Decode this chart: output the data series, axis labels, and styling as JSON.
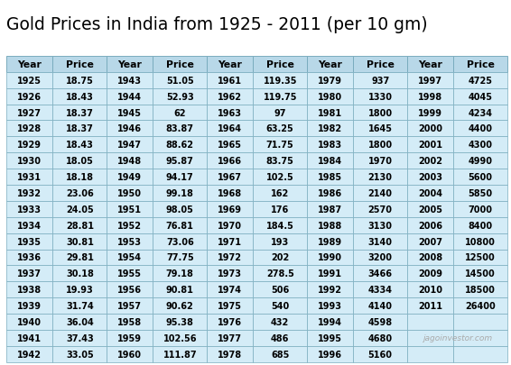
{
  "title": "Gold Prices in India from 1925 - 2011 (per 10 gm)",
  "title_fontsize": 13.5,
  "watermark": "jagoinvestor.com",
  "header_bg": "#b8d8e8",
  "row_bg": "#d4ecf7",
  "header_text_color": "#000000",
  "row_text_color": "#000000",
  "border_color": "#7aacbe",
  "columns": [
    "Year",
    "Price",
    "Year",
    "Price",
    "Year",
    "Price",
    "Year",
    "Price",
    "Year",
    "Price"
  ],
  "data": [
    [
      1925,
      "18.75",
      1943,
      "51.05",
      1961,
      "119.35",
      1979,
      "937",
      1997,
      "4725"
    ],
    [
      1926,
      "18.43",
      1944,
      "52.93",
      1962,
      "119.75",
      1980,
      "1330",
      1998,
      "4045"
    ],
    [
      1927,
      "18.37",
      1945,
      "62",
      1963,
      "97",
      1981,
      "1800",
      1999,
      "4234"
    ],
    [
      1928,
      "18.37",
      1946,
      "83.87",
      1964,
      "63.25",
      1982,
      "1645",
      2000,
      "4400"
    ],
    [
      1929,
      "18.43",
      1947,
      "88.62",
      1965,
      "71.75",
      1983,
      "1800",
      2001,
      "4300"
    ],
    [
      1930,
      "18.05",
      1948,
      "95.87",
      1966,
      "83.75",
      1984,
      "1970",
      2002,
      "4990"
    ],
    [
      1931,
      "18.18",
      1949,
      "94.17",
      1967,
      "102.5",
      1985,
      "2130",
      2003,
      "5600"
    ],
    [
      1932,
      "23.06",
      1950,
      "99.18",
      1968,
      "162",
      1986,
      "2140",
      2004,
      "5850"
    ],
    [
      1933,
      "24.05",
      1951,
      "98.05",
      1969,
      "176",
      1987,
      "2570",
      2005,
      "7000"
    ],
    [
      1934,
      "28.81",
      1952,
      "76.81",
      1970,
      "184.5",
      1988,
      "3130",
      2006,
      "8400"
    ],
    [
      1935,
      "30.81",
      1953,
      "73.06",
      1971,
      "193",
      1989,
      "3140",
      2007,
      "10800"
    ],
    [
      1936,
      "29.81",
      1954,
      "77.75",
      1972,
      "202",
      1990,
      "3200",
      2008,
      "12500"
    ],
    [
      1937,
      "30.18",
      1955,
      "79.18",
      1973,
      "278.5",
      1991,
      "3466",
      2009,
      "14500"
    ],
    [
      1938,
      "19.93",
      1956,
      "90.81",
      1974,
      "506",
      1992,
      "4334",
      2010,
      "18500"
    ],
    [
      1939,
      "31.74",
      1957,
      "90.62",
      1975,
      "540",
      1993,
      "4140",
      2011,
      "26400"
    ],
    [
      1940,
      "36.04",
      1958,
      "95.38",
      1976,
      "432",
      1994,
      "4598",
      null,
      null
    ],
    [
      1941,
      "37.43",
      1959,
      "102.56",
      1977,
      "486",
      1995,
      "4680",
      null,
      null
    ],
    [
      1942,
      "33.05",
      1960,
      "111.87",
      1978,
      "685",
      1996,
      "5160",
      null,
      null
    ]
  ],
  "fig_width": 5.66,
  "fig_height": 4.06,
  "dpi": 100
}
